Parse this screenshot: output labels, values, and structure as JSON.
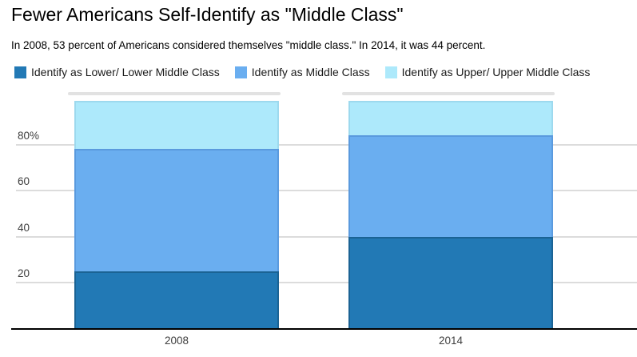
{
  "header": {
    "title": "Fewer Americans Self-Identify as \"Middle Class\"",
    "subtitle": "In 2008, 53 percent of Americans considered themselves \"middle class.\" In 2014, it was 44 percent."
  },
  "legend": {
    "items": [
      {
        "label": "Identify as Lower/ Lower Middle Class",
        "color": "#2279b5"
      },
      {
        "label": "Identify as Middle Class",
        "color": "#6aaef0"
      },
      {
        "label": "Identify as Upper/ Upper Middle Class",
        "color": "#ade9fb"
      }
    ]
  },
  "chart_data": {
    "type": "bar",
    "stacked": true,
    "title": "Fewer Americans Self-Identify as \"Middle Class\"",
    "subtitle": "In 2008, 53 percent of Americans considered themselves \"middle class.\" In 2014, it was 44 percent.",
    "categories": [
      "2008",
      "2014"
    ],
    "series": [
      {
        "name": "Identify as Lower/ Lower Middle Class",
        "values": [
          25,
          40
        ],
        "color": "#2279b5",
        "stroke": "#1b6394"
      },
      {
        "name": "Identify as Middle Class",
        "values": [
          53,
          44
        ],
        "color": "#6aaef0",
        "stroke": "#5a9ade"
      },
      {
        "name": "Identify as Upper/ Upper Middle Class",
        "values": [
          21,
          15
        ],
        "color": "#ade9fb",
        "stroke": "#9dd9ee"
      }
    ],
    "xlabel": "",
    "ylabel": "",
    "ylim": [
      0,
      100
    ],
    "y_axis": {
      "ticks": [
        20,
        40,
        60,
        80
      ],
      "tick_labels": [
        "20",
        "40",
        "60",
        "80%"
      ]
    },
    "grid": true,
    "legend_position": "top",
    "gridline_color": "#dcdcdc",
    "axis_color": "#000000"
  }
}
